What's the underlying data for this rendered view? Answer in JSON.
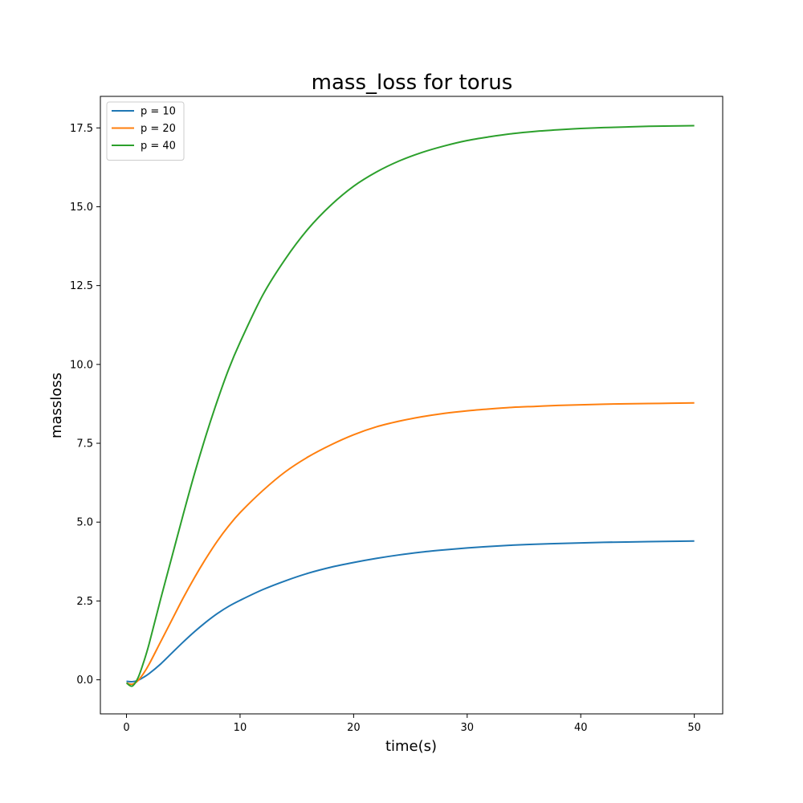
{
  "chart_data": {
    "type": "line",
    "title": "mass_loss for torus",
    "xlabel": "time(s)",
    "ylabel": "massloss",
    "xlim": [
      -2.3,
      52.5
    ],
    "ylim": [
      -1.08,
      18.5
    ],
    "xticks": [
      0,
      10,
      20,
      30,
      40,
      50
    ],
    "yticks": [
      0.0,
      2.5,
      5.0,
      7.5,
      10.0,
      12.5,
      15.0,
      17.5
    ],
    "xtick_labels": [
      "0",
      "10",
      "20",
      "30",
      "40",
      "50"
    ],
    "ytick_labels": [
      "0.0",
      "2.5",
      "5.0",
      "7.5",
      "10.0",
      "12.5",
      "15.0",
      "17.5"
    ],
    "grid": false,
    "legend_position": "top-left",
    "series": [
      {
        "name": "p = 10",
        "color": "#1f77b4",
        "x": [
          0,
          0.5,
          1,
          1.5,
          2,
          3,
          4,
          5,
          6,
          7,
          8,
          9,
          10,
          12,
          14,
          16,
          18,
          20,
          22,
          24,
          26,
          28,
          30,
          32,
          34,
          36,
          38,
          40,
          42,
          44,
          46,
          48,
          50
        ],
        "y": [
          -0.05,
          -0.06,
          -0.02,
          0.08,
          0.2,
          0.5,
          0.85,
          1.2,
          1.53,
          1.83,
          2.1,
          2.33,
          2.52,
          2.86,
          3.14,
          3.38,
          3.57,
          3.72,
          3.85,
          3.96,
          4.05,
          4.12,
          4.18,
          4.23,
          4.27,
          4.3,
          4.32,
          4.34,
          4.36,
          4.37,
          4.38,
          4.39,
          4.4
        ]
      },
      {
        "name": "p = 20",
        "color": "#ff7f0e",
        "x": [
          0,
          0.5,
          1,
          1.5,
          2,
          3,
          4,
          5,
          6,
          7,
          8,
          9,
          10,
          12,
          14,
          16,
          18,
          20,
          22,
          24,
          26,
          28,
          30,
          32,
          34,
          36,
          38,
          40,
          42,
          44,
          46,
          48,
          50
        ],
        "y": [
          -0.1,
          -0.14,
          -0.03,
          0.2,
          0.5,
          1.2,
          1.9,
          2.6,
          3.25,
          3.85,
          4.4,
          4.88,
          5.3,
          6.0,
          6.6,
          7.07,
          7.45,
          7.77,
          8.02,
          8.2,
          8.34,
          8.45,
          8.53,
          8.59,
          8.64,
          8.67,
          8.7,
          8.72,
          8.74,
          8.75,
          8.76,
          8.77,
          8.78
        ]
      },
      {
        "name": "p = 40",
        "color": "#2ca02c",
        "x": [
          0,
          0.5,
          1,
          1.5,
          2,
          3,
          4,
          5,
          6,
          7,
          8,
          9,
          10,
          12,
          14,
          16,
          18,
          20,
          22,
          24,
          26,
          28,
          30,
          32,
          34,
          36,
          38,
          40,
          42,
          44,
          46,
          48,
          50
        ],
        "y": [
          -0.1,
          -0.2,
          0.05,
          0.55,
          1.15,
          2.55,
          3.9,
          5.25,
          6.55,
          7.75,
          8.85,
          9.85,
          10.7,
          12.2,
          13.35,
          14.3,
          15.05,
          15.65,
          16.1,
          16.45,
          16.72,
          16.93,
          17.1,
          17.22,
          17.32,
          17.39,
          17.44,
          17.48,
          17.51,
          17.53,
          17.55,
          17.56,
          17.57
        ]
      }
    ]
  }
}
